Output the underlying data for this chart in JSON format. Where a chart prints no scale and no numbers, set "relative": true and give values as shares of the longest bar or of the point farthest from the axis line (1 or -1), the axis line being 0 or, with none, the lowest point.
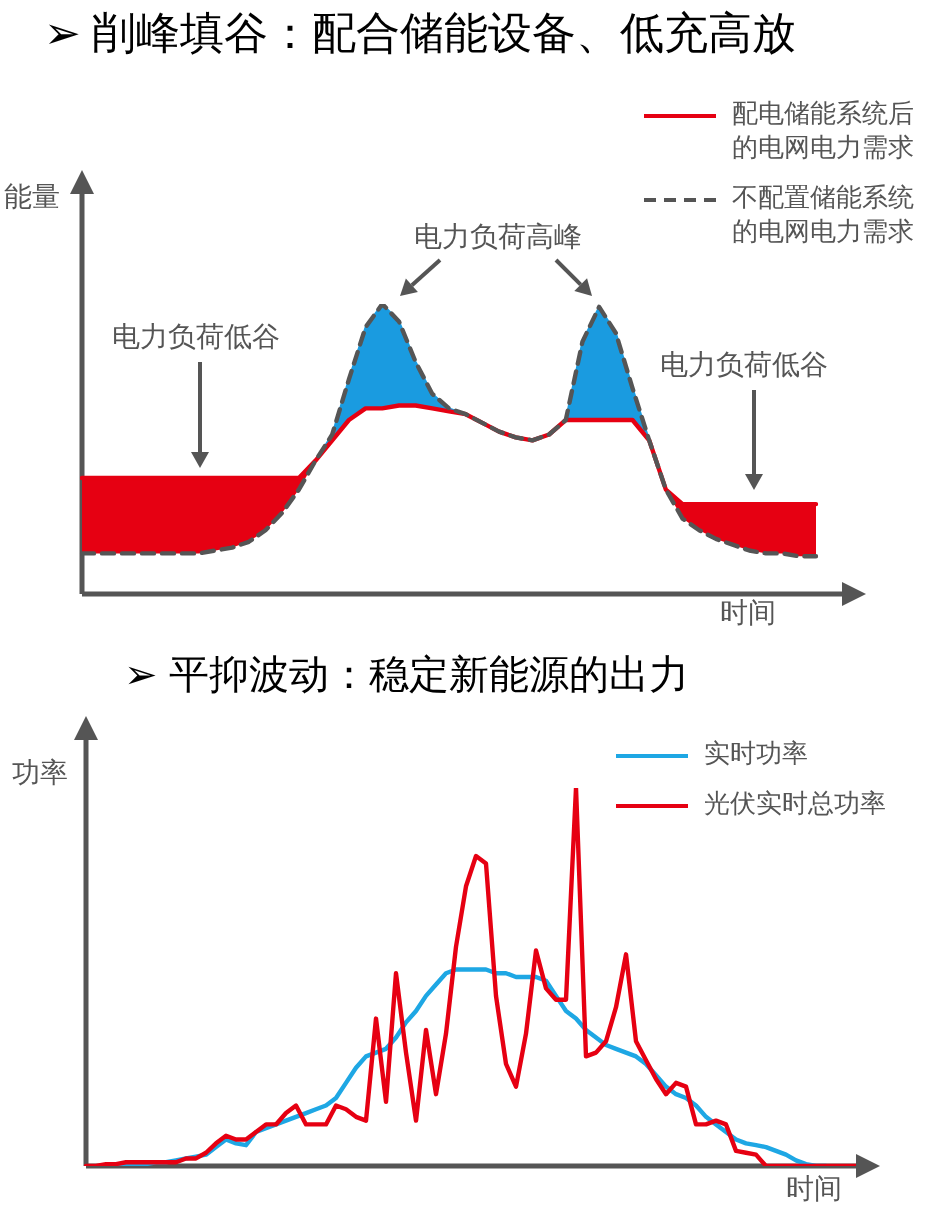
{
  "chart_data": [
    {
      "type": "line",
      "title": "➢  削峰填谷：配合储能设备、低充高放",
      "ylabel": "能量",
      "xlabel": "时间",
      "relative": true,
      "tick_labels": false,
      "legend": "top right",
      "annotations": [
        "电力负荷高峰",
        "电力负荷低谷",
        "电力负荷低谷"
      ],
      "categories": [
        null,
        null,
        null,
        null,
        null,
        null,
        null,
        null,
        null,
        null,
        null,
        null,
        null,
        null,
        null,
        null,
        null,
        null,
        null,
        null,
        null,
        null,
        null,
        null,
        null,
        null,
        null,
        null,
        null,
        null,
        null,
        null,
        null,
        null,
        null,
        null,
        null,
        null,
        null,
        null,
        null,
        null,
        null,
        null,
        null
      ],
      "series": [
        {
          "name": "配电储能系统后的电网电力需求",
          "color": "#e60012",
          "values": [
            0.4,
            0.4,
            0.4,
            0.4,
            0.4,
            0.4,
            0.4,
            0.4,
            0.4,
            0.4,
            0.4,
            0.4,
            0.4,
            0.4,
            0.46,
            0.53,
            0.6,
            0.64,
            0.64,
            0.65,
            0.65,
            0.64,
            0.63,
            0.62,
            0.59,
            0.56,
            0.54,
            0.53,
            0.55,
            0.6,
            0.6,
            0.6,
            0.6,
            0.6,
            0.53,
            0.36,
            0.31,
            0.31,
            0.31,
            0.31,
            0.31,
            0.31,
            0.31,
            0.31,
            0.31
          ]
        },
        {
          "name": "不配置储能系统的电网电力需求",
          "color": "#555555",
          "line_style": "dashed",
          "values": [
            0.14,
            0.14,
            0.14,
            0.14,
            0.14,
            0.14,
            0.14,
            0.14,
            0.15,
            0.16,
            0.18,
            0.22,
            0.28,
            0.36,
            0.46,
            0.55,
            0.74,
            0.92,
            1,
            0.94,
            0.8,
            0.69,
            0.64,
            0.62,
            0.59,
            0.56,
            0.54,
            0.53,
            0.55,
            0.6,
            0.87,
            0.99,
            0.9,
            0.71,
            0.53,
            0.36,
            0.26,
            0.22,
            0.19,
            0.17,
            0.15,
            0.14,
            0.14,
            0.13,
            0.13
          ]
        },
        {
          "type": "area",
          "color": "#1a9be0",
          "values": [
            null,
            null,
            null,
            null,
            null,
            null,
            null,
            null,
            null,
            null,
            null,
            null,
            null,
            null,
            0.46,
            0.55,
            0.74,
            0.92,
            1,
            0.94,
            0.8,
            0.69,
            0.64,
            0.62,
            null,
            null,
            null,
            null,
            0.55,
            0.6,
            0.87,
            0.99,
            0.9,
            0.71,
            0.53,
            null,
            null,
            null,
            null,
            null,
            null,
            null,
            null,
            null,
            null
          ]
        },
        {
          "type": "area",
          "color": "#e60012",
          "values": [
            0.4,
            0.4,
            0.4,
            0.4,
            0.4,
            0.4,
            0.4,
            0.4,
            0.4,
            0.4,
            0.4,
            0.4,
            0.4,
            0.4,
            0.46,
            null,
            null,
            null,
            null,
            null,
            null,
            null,
            null,
            null,
            null,
            null,
            null,
            null,
            null,
            null,
            null,
            null,
            null,
            null,
            null,
            0.36,
            0.31,
            0.31,
            0.31,
            0.31,
            0.31,
            0.31,
            0.31,
            0.31,
            0.31
          ]
        }
      ]
    },
    {
      "type": "line",
      "title": "➢  平抑波动：稳定新能源的出力",
      "ylabel": "功率",
      "xlabel": "时间",
      "relative": true,
      "tick_labels": false,
      "legend": "top right",
      "categories": [
        null,
        null,
        null,
        null,
        null,
        null,
        null,
        null,
        null,
        null,
        null,
        null,
        null,
        null,
        null,
        null,
        null,
        null,
        null,
        null,
        null,
        null,
        null,
        null,
        null,
        null,
        null,
        null,
        null,
        null,
        null,
        null,
        null,
        null,
        null,
        null,
        null,
        null,
        null,
        null,
        null,
        null,
        null,
        null,
        null,
        null,
        null,
        null,
        null,
        null,
        null,
        null,
        null,
        null,
        null,
        null,
        null,
        null,
        null,
        null,
        null,
        null,
        null,
        null,
        null,
        null,
        null,
        null,
        null,
        null,
        null,
        null,
        null,
        null,
        null,
        null,
        null,
        null
      ],
      "series": [
        {
          "name": "实时功率",
          "color": "#1ea7e4",
          "values": [
            null,
            null,
            0,
            0,
            0.005,
            0.005,
            0.005,
            0.01,
            0.01,
            0.015,
            0.02,
            0.025,
            0.03,
            0.05,
            0.07,
            0.06,
            0.055,
            0.09,
            0.1,
            0.11,
            0.12,
            0.13,
            0.14,
            0.15,
            0.16,
            0.18,
            0.22,
            0.26,
            0.29,
            0.3,
            0.31,
            0.34,
            0.38,
            0.41,
            0.45,
            0.48,
            0.51,
            0.52,
            0.52,
            0.52,
            0.52,
            0.51,
            0.51,
            0.5,
            0.5,
            0.5,
            0.49,
            0.45,
            0.41,
            0.39,
            0.36,
            0.34,
            0.32,
            0.31,
            0.3,
            0.29,
            0.27,
            0.24,
            0.21,
            0.19,
            0.18,
            0.16,
            0.13,
            0.11,
            0.09,
            0.07,
            0.06,
            0.055,
            0.05,
            0.04,
            0.03,
            0.015,
            0.005,
            0,
            0,
            null,
            null,
            null
          ]
        },
        {
          "name": "光伏实时总功率",
          "color": "#e60012",
          "values": [
            0,
            0,
            0.005,
            0.005,
            0.01,
            0.01,
            0.01,
            0.01,
            0.01,
            0.01,
            0.02,
            0.02,
            0.035,
            0.06,
            0.08,
            0.07,
            0.07,
            0.09,
            0.11,
            0.11,
            0.14,
            0.16,
            0.11,
            0.11,
            0.11,
            0.16,
            0.15,
            0.13,
            0.12,
            0.39,
            0.17,
            0.51,
            0.3,
            0.12,
            0.36,
            0.19,
            0.35,
            0.58,
            0.74,
            0.82,
            0.8,
            0.45,
            0.27,
            0.21,
            0.35,
            0.57,
            0.47,
            0.44,
            0.44,
            1,
            0.29,
            0.3,
            0.33,
            0.42,
            0.56,
            0.33,
            0.28,
            0.23,
            0.19,
            0.22,
            0.21,
            0.11,
            0.11,
            0.12,
            0.11,
            0.04,
            0.035,
            0.03,
            0,
            0,
            0,
            0,
            0,
            0,
            0,
            0,
            0,
            0
          ]
        }
      ]
    }
  ]
}
